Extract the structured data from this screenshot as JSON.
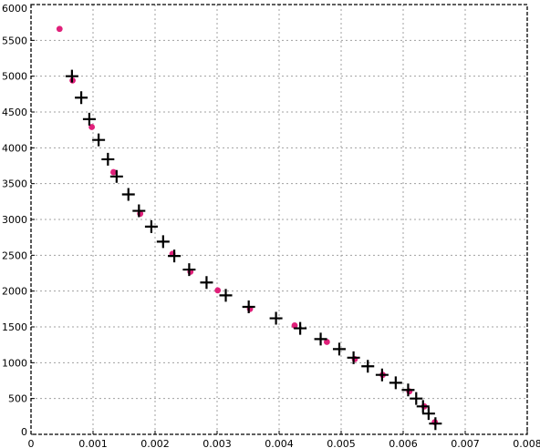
{
  "chart_data": {
    "type": "scatter",
    "title": "",
    "xlabel": "",
    "ylabel": "",
    "xlim": [
      0,
      0.008
    ],
    "ylim": [
      0,
      6000
    ],
    "x_ticks": [
      0,
      0.001,
      0.002,
      0.003,
      0.004,
      0.005,
      0.006,
      0.007,
      0.008
    ],
    "y_ticks": [
      0,
      500,
      1000,
      1500,
      2000,
      2500,
      3000,
      3500,
      4000,
      4500,
      5000,
      5500,
      6000
    ],
    "x_tick_labels": [
      "0",
      "0.001",
      "0.002",
      "0.003",
      "0.004",
      "0.005",
      "0.006",
      "0.007",
      "0.008"
    ],
    "y_tick_labels": [
      "0",
      "500",
      "1000",
      "1500",
      "2000",
      "2500",
      "3000",
      "3500",
      "4000",
      "4500",
      "5000",
      "5500",
      "6000"
    ],
    "grid": true,
    "legend": "none",
    "series": [
      {
        "marker": "circle",
        "color": "#e0207a",
        "points": [
          [
            0.00046,
            5660
          ],
          [
            0.00067,
            4940
          ],
          [
            0.00098,
            4290
          ],
          [
            0.00133,
            3660
          ],
          [
            0.00176,
            3080
          ],
          [
            0.00228,
            2520
          ],
          [
            0.00257,
            2270
          ],
          [
            0.00301,
            2010
          ],
          [
            0.00353,
            1750
          ],
          [
            0.00425,
            1520
          ],
          [
            0.00477,
            1290
          ],
          [
            0.00522,
            1050
          ],
          [
            0.00567,
            830
          ],
          [
            0.0061,
            600
          ],
          [
            0.00634,
            390
          ],
          [
            0.00651,
            170
          ]
        ]
      },
      {
        "marker": "plus",
        "color": "#000000",
        "points": [
          [
            0.00066,
            5000
          ],
          [
            0.00081,
            4700
          ],
          [
            0.00094,
            4400
          ],
          [
            0.00109,
            4110
          ],
          [
            0.00124,
            3840
          ],
          [
            0.00138,
            3600
          ],
          [
            0.00157,
            3350
          ],
          [
            0.00174,
            3120
          ],
          [
            0.00194,
            2900
          ],
          [
            0.00213,
            2690
          ],
          [
            0.00231,
            2490
          ],
          [
            0.00255,
            2300
          ],
          [
            0.00283,
            2120
          ],
          [
            0.00314,
            1940
          ],
          [
            0.00351,
            1780
          ],
          [
            0.00395,
            1620
          ],
          [
            0.00434,
            1480
          ],
          [
            0.00467,
            1330
          ],
          [
            0.00497,
            1190
          ],
          [
            0.0052,
            1070
          ],
          [
            0.00543,
            950
          ],
          [
            0.00566,
            830
          ],
          [
            0.00588,
            720
          ],
          [
            0.00608,
            620
          ],
          [
            0.00621,
            500
          ],
          [
            0.00632,
            390
          ],
          [
            0.00641,
            290
          ],
          [
            0.00652,
            150
          ]
        ]
      }
    ]
  }
}
